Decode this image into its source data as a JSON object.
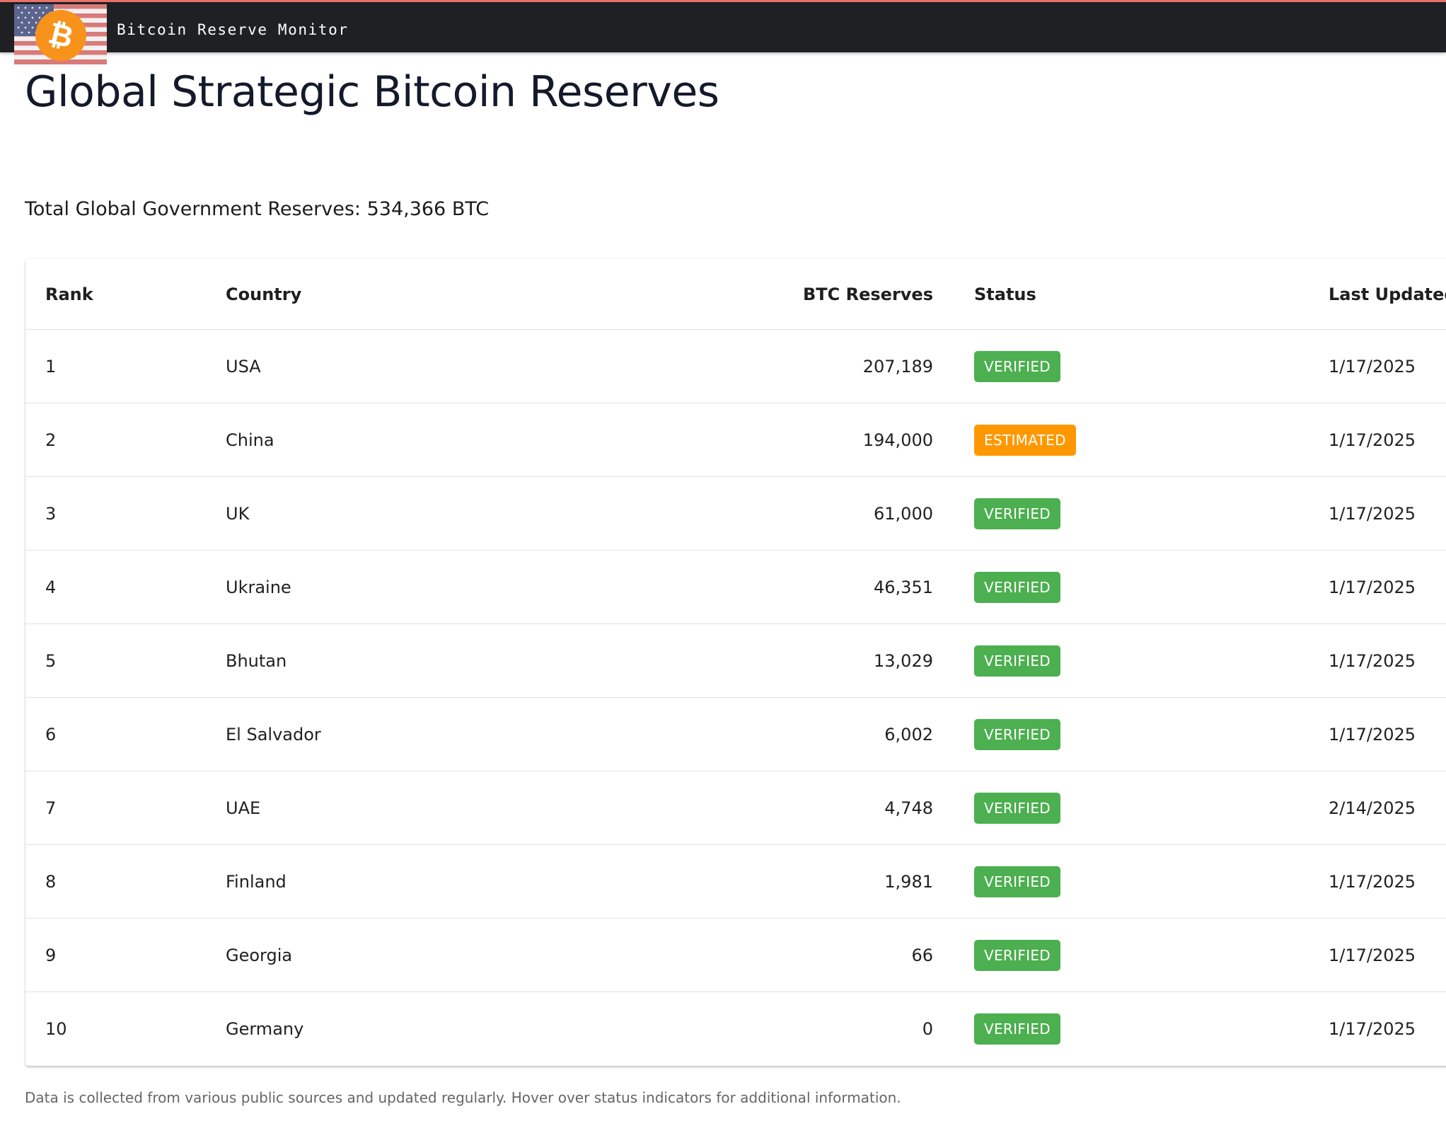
{
  "header": {
    "app_title": "Bitcoin Reserve Monitor",
    "flag_icon": "us-flag-icon",
    "logo_icon": "bitcoin-icon",
    "bitcoin_symbol": "₿",
    "accent_color": "#f7931a"
  },
  "main": {
    "page_title": "Global Strategic Bitcoin Reserves",
    "total_label": "Total Global Government Reserves: 534,366 BTC"
  },
  "table": {
    "headers": {
      "rank": "Rank",
      "country": "Country",
      "btc": "BTC Reserves",
      "status": "Status",
      "updated": "Last Updated"
    },
    "rows": [
      {
        "rank": "1",
        "country": "USA",
        "btc": "207,189",
        "status": "VERIFIED",
        "updated": "1/17/2025"
      },
      {
        "rank": "2",
        "country": "China",
        "btc": "194,000",
        "status": "ESTIMATED",
        "updated": "1/17/2025"
      },
      {
        "rank": "3",
        "country": "UK",
        "btc": "61,000",
        "status": "VERIFIED",
        "updated": "1/17/2025"
      },
      {
        "rank": "4",
        "country": "Ukraine",
        "btc": "46,351",
        "status": "VERIFIED",
        "updated": "1/17/2025"
      },
      {
        "rank": "5",
        "country": "Bhutan",
        "btc": "13,029",
        "status": "VERIFIED",
        "updated": "1/17/2025"
      },
      {
        "rank": "6",
        "country": "El Salvador",
        "btc": "6,002",
        "status": "VERIFIED",
        "updated": "1/17/2025"
      },
      {
        "rank": "7",
        "country": "UAE",
        "btc": "4,748",
        "status": "VERIFIED",
        "updated": "2/14/2025"
      },
      {
        "rank": "8",
        "country": "Finland",
        "btc": "1,981",
        "status": "VERIFIED",
        "updated": "1/17/2025"
      },
      {
        "rank": "9",
        "country": "Georgia",
        "btc": "66",
        "status": "VERIFIED",
        "updated": "1/17/2025"
      },
      {
        "rank": "10",
        "country": "Germany",
        "btc": "0",
        "status": "VERIFIED",
        "updated": "1/17/2025"
      }
    ],
    "status_colors": {
      "VERIFIED": "#4caf50",
      "ESTIMATED": "#ff9800"
    }
  },
  "footer": {
    "note": "Data is collected from various public sources and updated regularly. Hover over status indicators for additional information."
  }
}
